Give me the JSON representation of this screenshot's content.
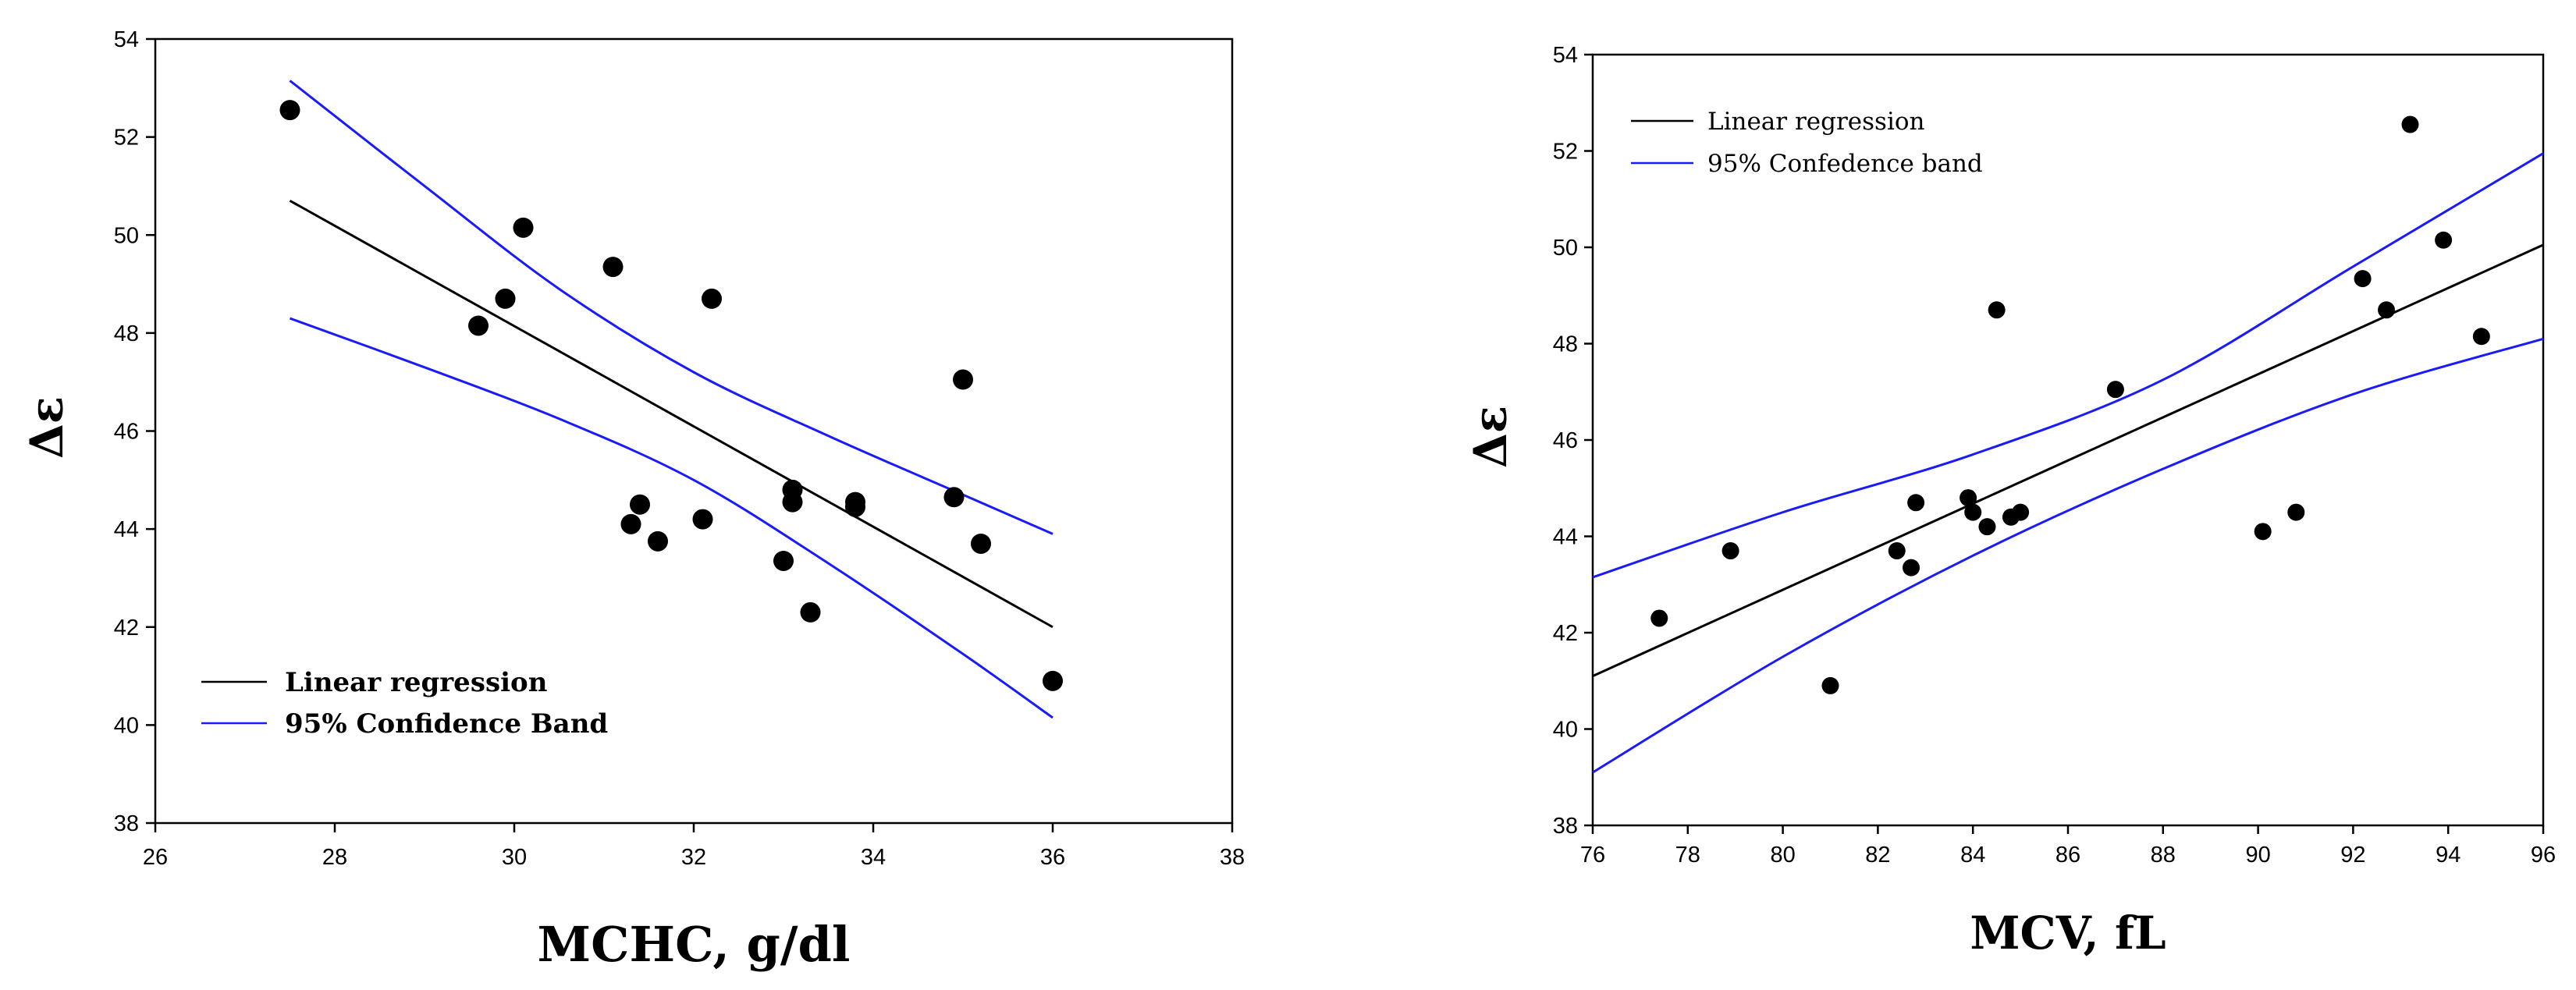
{
  "colors": {
    "regression": "#000000",
    "confidence": "#1a1aff",
    "point": "#000000"
  },
  "chart_data": [
    {
      "type": "scatter",
      "xlabel": "MCHC, g/dl",
      "ylabel": "Δε",
      "xlim": [
        26,
        38
      ],
      "ylim": [
        38,
        54
      ],
      "xticks": [
        "26",
        "28",
        "30",
        "32",
        "34",
        "36",
        "38"
      ],
      "yticks": [
        "38",
        "40",
        "42",
        "44",
        "46",
        "48",
        "50",
        "52",
        "54"
      ],
      "legend_position": "bottom-left",
      "legend": {
        "regression": "Linear regression",
        "confidence": "95% Confidence Band"
      },
      "points": [
        [
          27.5,
          52.55
        ],
        [
          29.6,
          48.15
        ],
        [
          29.9,
          48.7
        ],
        [
          30.1,
          50.15
        ],
        [
          31.1,
          49.35
        ],
        [
          31.3,
          44.1
        ],
        [
          31.4,
          44.5
        ],
        [
          31.6,
          43.75
        ],
        [
          32.1,
          44.2
        ],
        [
          32.2,
          48.7
        ],
        [
          33.0,
          43.35
        ],
        [
          33.1,
          44.8
        ],
        [
          33.1,
          44.55
        ],
        [
          33.3,
          42.3
        ],
        [
          33.8,
          44.55
        ],
        [
          33.8,
          44.45
        ],
        [
          34.9,
          44.65
        ],
        [
          35.0,
          47.05
        ],
        [
          35.2,
          43.7
        ],
        [
          36.0,
          40.9
        ]
      ],
      "regression": [
        [
          27.5,
          50.7
        ],
        [
          36.0,
          42.0
        ]
      ],
      "upper_band": [
        [
          27.5,
          53.15
        ],
        [
          29.0,
          51.0
        ],
        [
          30.5,
          48.9
        ],
        [
          32.0,
          47.2
        ],
        [
          33.5,
          45.9
        ],
        [
          35.0,
          44.7
        ],
        [
          36.0,
          43.9
        ]
      ],
      "lower_band": [
        [
          27.5,
          48.3
        ],
        [
          29.0,
          47.3
        ],
        [
          30.5,
          46.25
        ],
        [
          32.0,
          45.0
        ],
        [
          33.5,
          43.3
        ],
        [
          35.0,
          41.45
        ],
        [
          36.0,
          40.15
        ]
      ]
    },
    {
      "type": "scatter",
      "xlabel": "MCV, fL",
      "ylabel": "Δε",
      "xlim": [
        76,
        96
      ],
      "ylim": [
        38,
        54
      ],
      "xticks": [
        "76",
        "78",
        "80",
        "82",
        "84",
        "86",
        "88",
        "90",
        "92",
        "94",
        "96"
      ],
      "yticks": [
        "38",
        "40",
        "42",
        "44",
        "46",
        "48",
        "50",
        "52",
        "54"
      ],
      "legend_position": "top-left",
      "legend": {
        "regression": "Linear regression",
        "confidence": "95% Confedence band"
      },
      "points": [
        [
          77.4,
          42.3
        ],
        [
          78.9,
          43.7
        ],
        [
          81.0,
          40.9
        ],
        [
          82.4,
          43.7
        ],
        [
          82.7,
          43.35
        ],
        [
          82.8,
          44.7
        ],
        [
          83.9,
          44.8
        ],
        [
          84.0,
          44.5
        ],
        [
          84.3,
          44.2
        ],
        [
          84.5,
          48.7
        ],
        [
          84.8,
          44.4
        ],
        [
          85.0,
          44.5
        ],
        [
          87.0,
          47.05
        ],
        [
          90.1,
          44.1
        ],
        [
          90.8,
          44.5
        ],
        [
          92.2,
          49.35
        ],
        [
          92.7,
          48.7
        ],
        [
          93.2,
          52.55
        ],
        [
          93.9,
          50.15
        ],
        [
          94.7,
          48.15
        ]
      ],
      "regression": [
        [
          76,
          41.1
        ],
        [
          96,
          50.05
        ]
      ],
      "upper_band": [
        [
          76,
          43.15
        ],
        [
          80,
          44.5
        ],
        [
          84,
          45.7
        ],
        [
          88,
          47.25
        ],
        [
          92,
          49.6
        ],
        [
          96,
          51.95
        ]
      ],
      "lower_band": [
        [
          76,
          39.1
        ],
        [
          80,
          41.5
        ],
        [
          84,
          43.6
        ],
        [
          88,
          45.4
        ],
        [
          92,
          46.95
        ],
        [
          96,
          48.1
        ]
      ]
    }
  ]
}
